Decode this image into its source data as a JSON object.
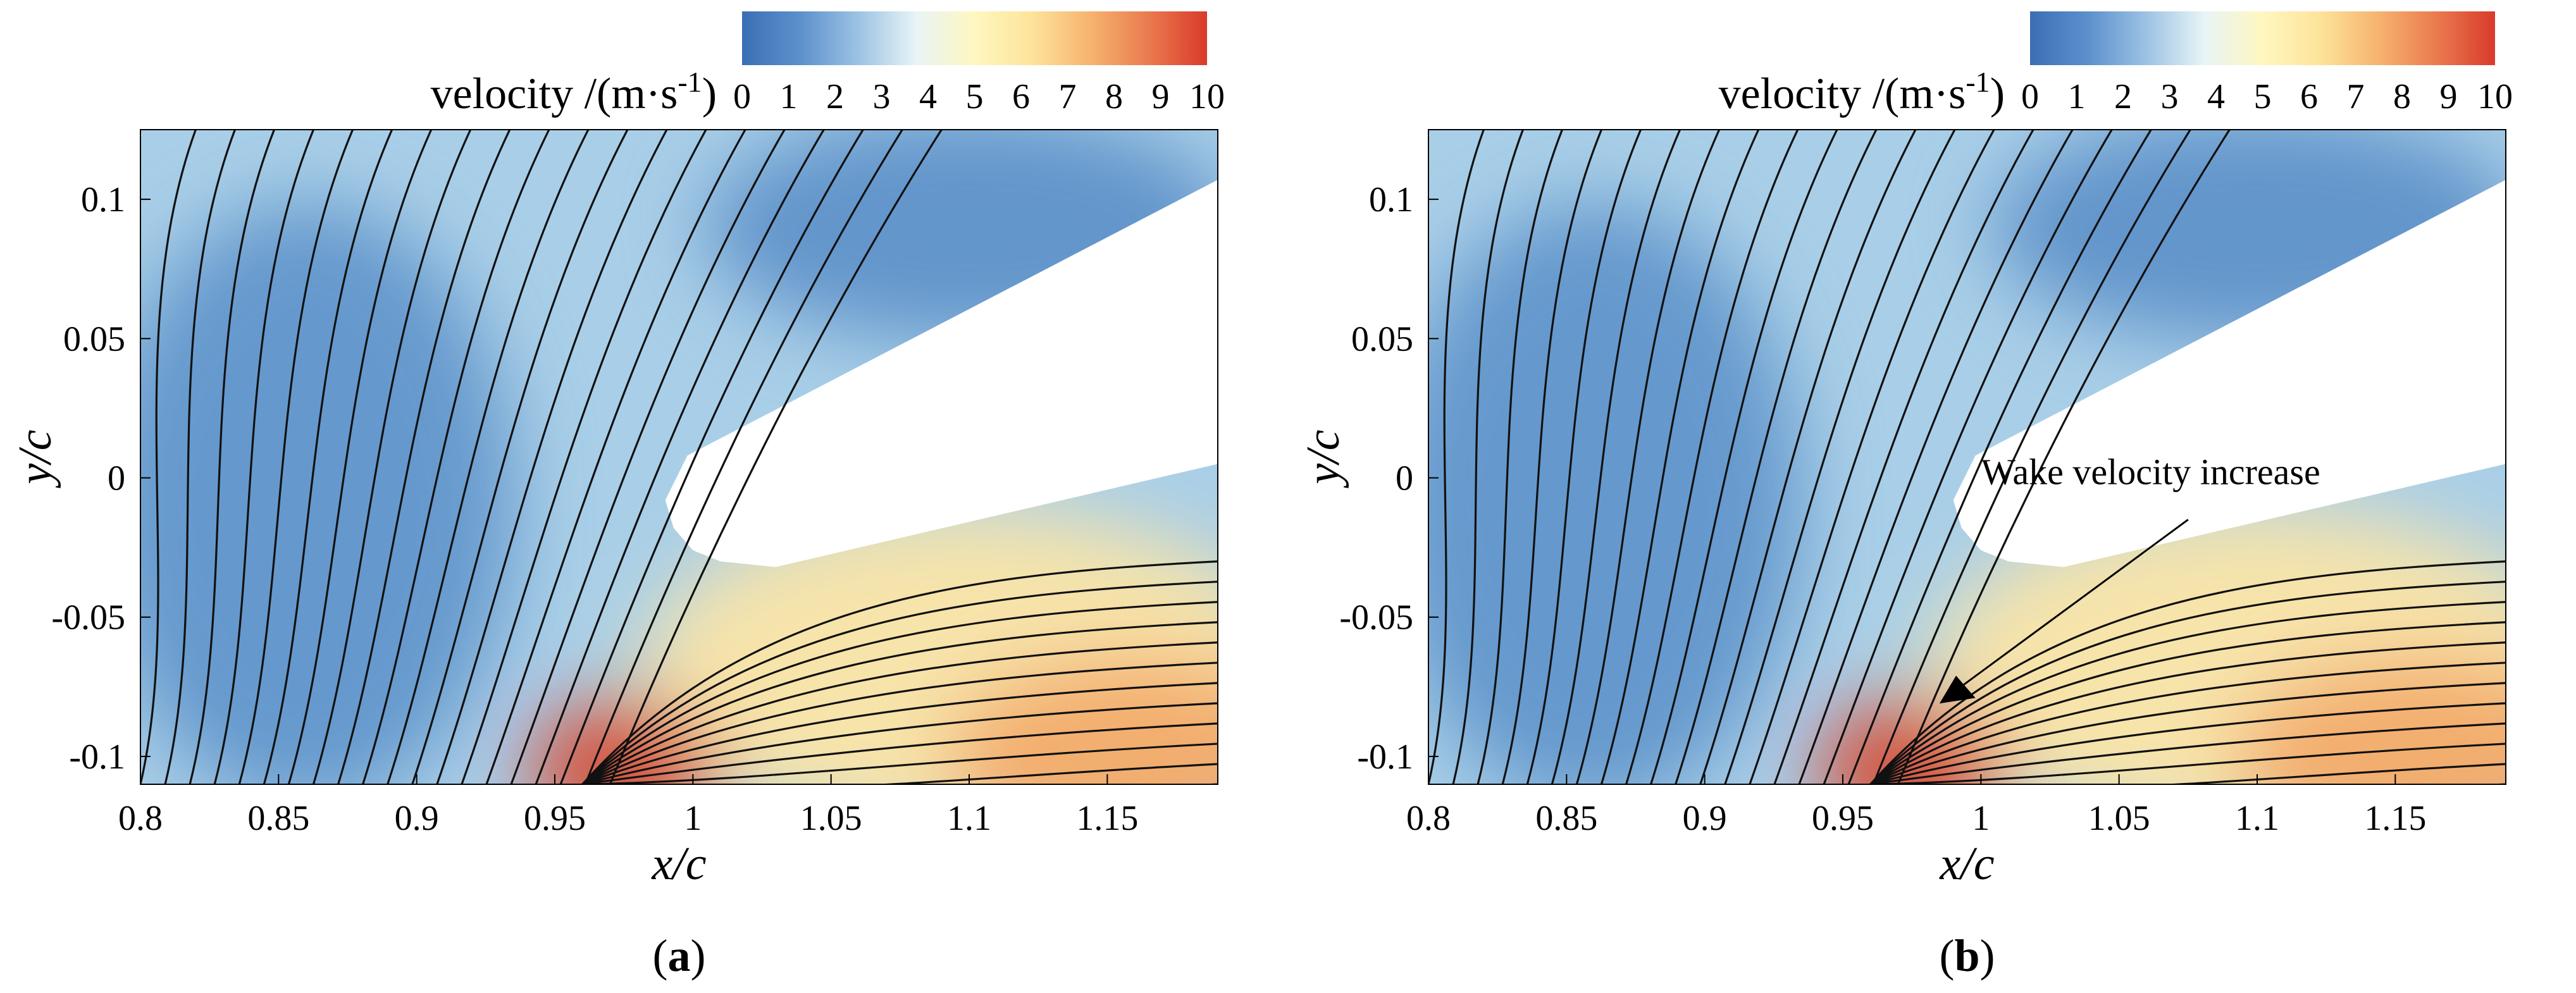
{
  "colorbar": {
    "title": "velocity /(m·s",
    "title_exp": "-1",
    "title_close": ")",
    "ticks": [
      "0",
      "1",
      "2",
      "3",
      "4",
      "5",
      "6",
      "7",
      "8",
      "9",
      "10"
    ],
    "stops": [
      "#3b6fb4",
      "#5c90cc",
      "#9cc3e4",
      "#e8f4f6",
      "#fff7c0",
      "#fde39a",
      "#f6b36f",
      "#ea7a4f",
      "#d93a2b"
    ]
  },
  "colors": {
    "low": "#5b8fc8",
    "mid": "#a9cfe8",
    "high": "#f2a767",
    "peak": "#d94a30",
    "streamline": "#111111"
  },
  "chart_data": [
    {
      "type": "heatmap",
      "panel": "(a)",
      "panel_letter": "a",
      "description": "velocity contour with streamlines around trailing edge region",
      "xlabel": "x/c",
      "ylabel": "y/c",
      "x_ticks": [
        "0.8",
        "0.85",
        "0.9",
        "0.95",
        "1",
        "1.05",
        "1.1",
        "1.15"
      ],
      "y_ticks": [
        "0.1",
        "0.05",
        "0",
        "-0.05",
        "-0.1"
      ],
      "xlim": [
        0.8,
        1.19
      ],
      "ylim": [
        -0.11,
        0.125
      ],
      "colorbar_range": [
        0,
        10
      ],
      "annotation": ""
    },
    {
      "type": "heatmap",
      "panel": "(b)",
      "panel_letter": "b",
      "description": "velocity contour with streamlines around trailing edge region",
      "xlabel": "x/c",
      "ylabel": "y/c",
      "x_ticks": [
        "0.8",
        "0.85",
        "0.9",
        "0.95",
        "1",
        "1.05",
        "1.1",
        "1.15"
      ],
      "y_ticks": [
        "0.1",
        "0.05",
        "0",
        "-0.05",
        "-0.1"
      ],
      "xlim": [
        0.8,
        1.19
      ],
      "ylim": [
        -0.11,
        0.125
      ],
      "colorbar_range": [
        0,
        10
      ],
      "annotation": "Wake velocity increase"
    }
  ]
}
